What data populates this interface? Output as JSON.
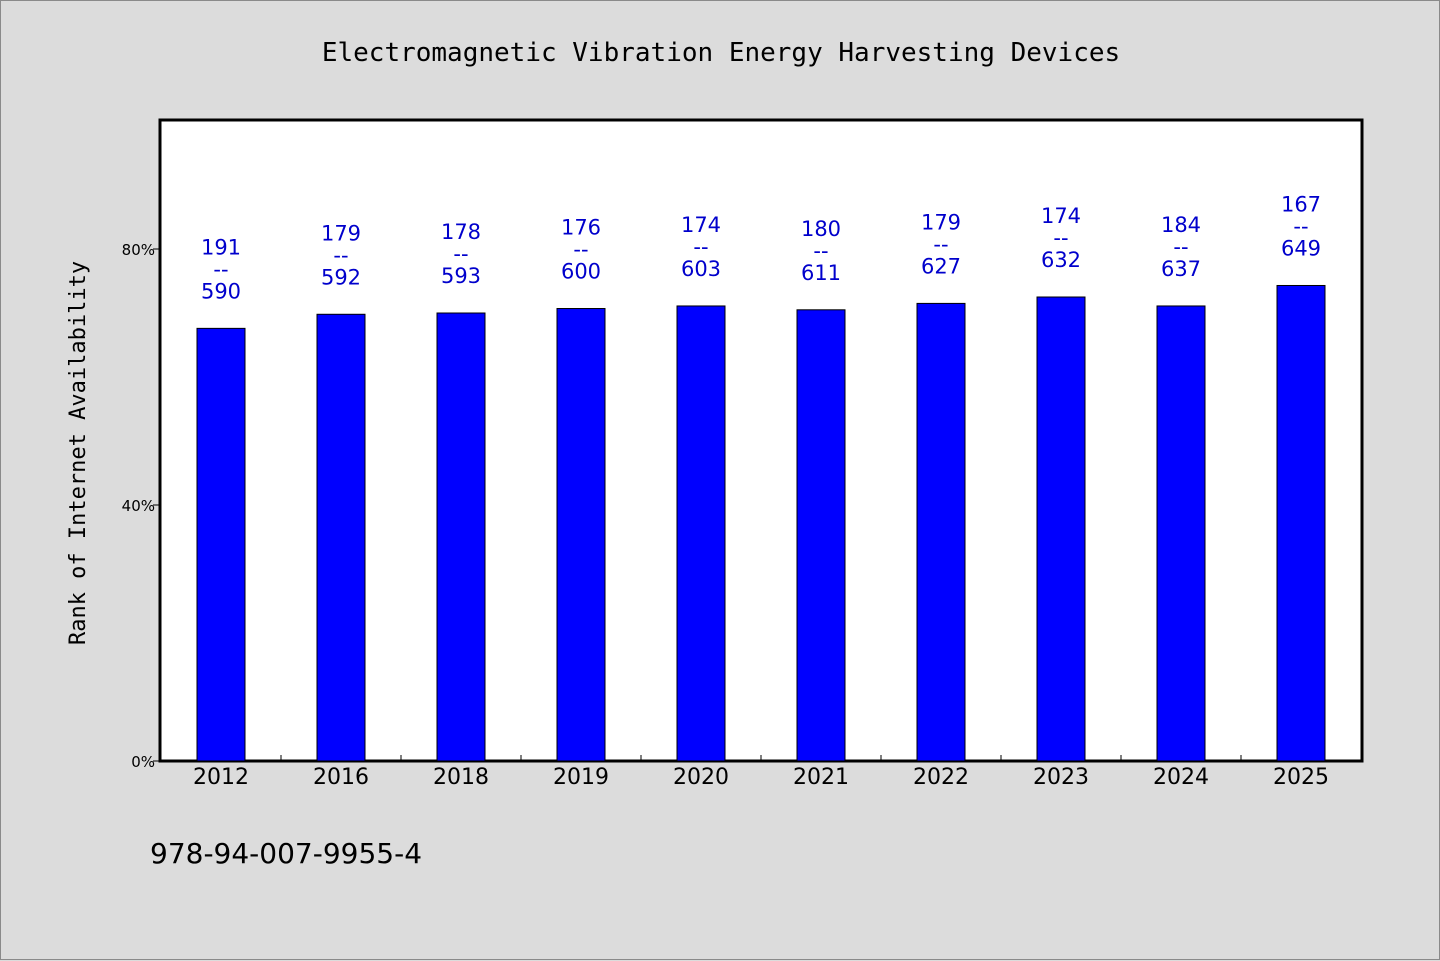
{
  "chart_data": {
    "type": "bar",
    "title": "Electromagnetic Vibration Energy Harvesting Devices",
    "ylabel": "Rank of Internet Availability",
    "xlabel": "",
    "ylim": [
      0,
      100
    ],
    "yticks": [
      0,
      40,
      80
    ],
    "ytick_labels": [
      "0%",
      "40%",
      "80%"
    ],
    "categories": [
      "2012",
      "2016",
      "2018",
      "2019",
      "2020",
      "2021",
      "2022",
      "2023",
      "2024",
      "2025"
    ],
    "values": [
      67.6,
      69.8,
      70.0,
      70.7,
      71.1,
      70.5,
      71.5,
      72.5,
      71.1,
      74.3
    ],
    "labels": [
      {
        "top": "191",
        "sep": "--",
        "bottom": "590"
      },
      {
        "top": "179",
        "sep": "--",
        "bottom": "592"
      },
      {
        "top": "178",
        "sep": "--",
        "bottom": "593"
      },
      {
        "top": "176",
        "sep": "--",
        "bottom": "600"
      },
      {
        "top": "174",
        "sep": "--",
        "bottom": "603"
      },
      {
        "top": "180",
        "sep": "--",
        "bottom": "611"
      },
      {
        "top": "179",
        "sep": "--",
        "bottom": "627"
      },
      {
        "top": "174",
        "sep": "--",
        "bottom": "632"
      },
      {
        "top": "184",
        "sep": "--",
        "bottom": "637"
      },
      {
        "top": "167",
        "sep": "--",
        "bottom": "649"
      }
    ],
    "bar_color": "#0000ff",
    "label_color": "#0000cc",
    "grid": false,
    "legend": "none"
  },
  "footer": {
    "isbn": "978-94-007-9955-4"
  },
  "colors": {
    "background": "#dcdcdc",
    "plot_background": "#ffffff",
    "axis": "#000000"
  }
}
